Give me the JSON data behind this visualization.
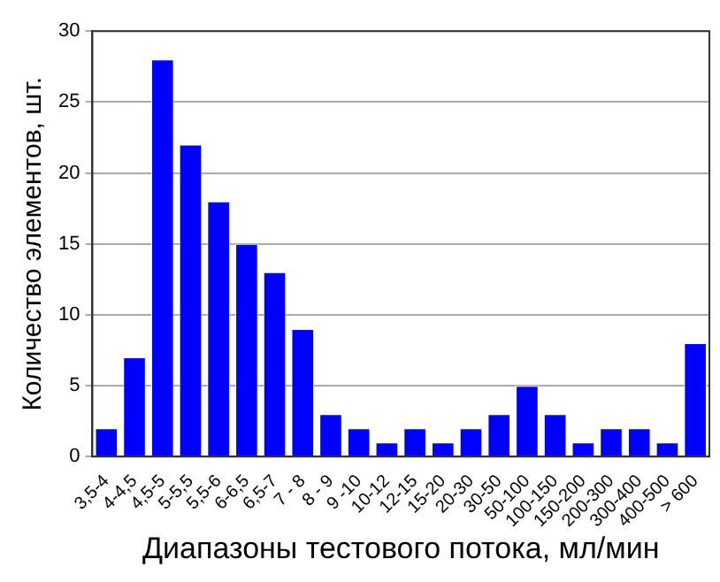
{
  "chart_data": {
    "type": "bar",
    "xlabel": "Диапазоны тестового потока, мл/мин",
    "ylabel": "Количество элементов, шт.",
    "categories": [
      "3,5-4",
      "4-4,5",
      "4,5-5",
      "5-5,5",
      "5,5-6",
      "6-6,5",
      "6,5-7",
      "7 - 8",
      "8 - 9",
      "9 -10",
      "10-12",
      "12-15",
      "15-20",
      "20-30",
      "30-50",
      "50-100",
      "100-150",
      "150-200",
      "200-300",
      "300-400",
      "400-500",
      "> 600"
    ],
    "values": [
      2,
      7,
      28,
      22,
      18,
      15,
      13,
      9,
      3,
      2,
      1,
      2,
      1,
      2,
      3,
      5,
      3,
      1,
      2,
      2,
      1,
      8
    ],
    "color": "#0000ff",
    "ylim": [
      0,
      30
    ],
    "yticks": [
      0,
      5,
      10,
      15,
      20,
      25,
      30
    ],
    "grid": "y",
    "legend": false
  }
}
